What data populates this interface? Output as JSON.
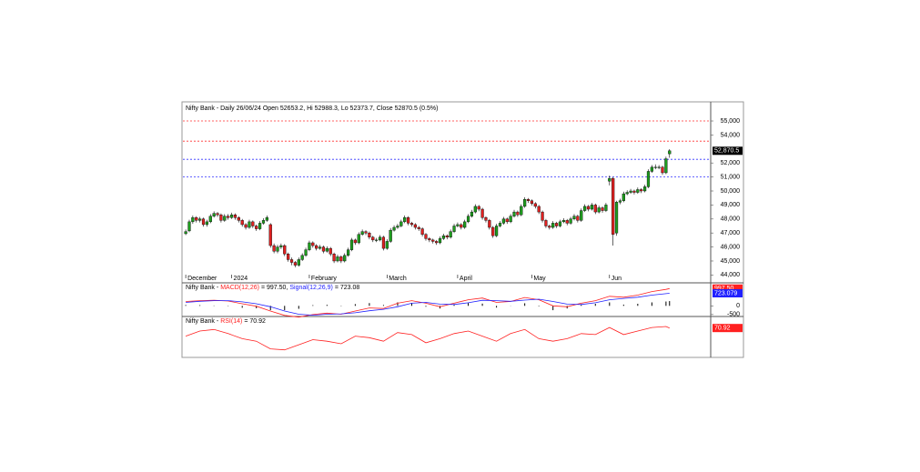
{
  "chart_data": [
    {
      "type": "candlestick",
      "title": "Nifty Bank - Daily 26/06/24 Open 52653.2, Hi 52988.3, Lo 52373.7, Close 52870.5 (0.5%)",
      "up_color": "#1e9e1e",
      "down_color": "#e02020",
      "xlim": [
        -0.8,
        148.4
      ],
      "xticks": [
        {
          "value": 0,
          "label": "December"
        },
        {
          "value": 13,
          "label": "2024"
        },
        {
          "value": 35,
          "label": "February"
        },
        {
          "value": 57,
          "label": "March"
        },
        {
          "value": 77,
          "label": "April"
        },
        {
          "value": 98,
          "label": "May"
        },
        {
          "value": 120,
          "label": "Jun"
        }
      ],
      "ylim": [
        43700,
        56300
      ],
      "yticks": [
        {
          "value": 44000,
          "label": "44,000"
        },
        {
          "value": 45000,
          "label": "45,000"
        },
        {
          "value": 46000,
          "label": "46,000"
        },
        {
          "value": 47000,
          "label": "47,000"
        },
        {
          "value": 48000,
          "label": "48,000"
        },
        {
          "value": 49000,
          "label": "49,000"
        },
        {
          "value": 50000,
          "label": "50,000"
        },
        {
          "value": 51000,
          "label": "51,000"
        },
        {
          "value": 52000,
          "label": "52,000"
        },
        {
          "value": 54000,
          "label": "54,000"
        },
        {
          "value": 55000,
          "label": "55,000"
        }
      ],
      "hlines": [
        {
          "value": 55000,
          "color": "#ff3030"
        },
        {
          "value": 53560,
          "color": "#ff3030"
        },
        {
          "value": 52260,
          "color": "#3030ff"
        },
        {
          "value": 51000,
          "color": "#3030ff"
        }
      ],
      "last_label": "52,870.5",
      "candles": [
        [
          46950,
          47250,
          46850,
          47100
        ],
        [
          47150,
          47950,
          47050,
          47800
        ],
        [
          47800,
          48250,
          47650,
          48100
        ],
        [
          48100,
          48200,
          47750,
          47900
        ],
        [
          47900,
          48150,
          47750,
          48000
        ],
        [
          48000,
          48100,
          47450,
          47600
        ],
        [
          47600,
          47950,
          47450,
          47800
        ],
        [
          47800,
          48350,
          47700,
          48200
        ],
        [
          48200,
          48550,
          48100,
          48400
        ],
        [
          48400,
          48500,
          48150,
          48300
        ],
        [
          48300,
          48400,
          47750,
          47900
        ],
        [
          47900,
          48350,
          47800,
          48200
        ],
        [
          48200,
          48350,
          47950,
          48100
        ],
        [
          48100,
          48450,
          48000,
          48300
        ],
        [
          48300,
          48400,
          47950,
          48100
        ],
        [
          48100,
          48200,
          47750,
          47900
        ],
        [
          47900,
          48000,
          47450,
          47600
        ],
        [
          47600,
          47700,
          47250,
          47400
        ],
        [
          47400,
          47950,
          47300,
          47800
        ],
        [
          47800,
          47900,
          47350,
          47500
        ],
        [
          47500,
          47600,
          47150,
          47300
        ],
        [
          47300,
          47850,
          47200,
          47700
        ],
        [
          47700,
          48050,
          47600,
          47900
        ],
        [
          47900,
          48250,
          47800,
          48100
        ],
        [
          47600,
          47700,
          45950,
          46100
        ],
        [
          46100,
          46250,
          45550,
          45700
        ],
        [
          45700,
          46150,
          45550,
          46000
        ],
        [
          46000,
          46250,
          45850,
          46100
        ],
        [
          46100,
          46200,
          45350,
          45500
        ],
        [
          45500,
          45600,
          44950,
          45100
        ],
        [
          45100,
          45250,
          44700,
          44900
        ],
        [
          44900,
          45000,
          44550,
          44700
        ],
        [
          44700,
          45250,
          44600,
          45100
        ],
        [
          45100,
          45550,
          45000,
          45400
        ],
        [
          45400,
          45950,
          45300,
          45800
        ],
        [
          45800,
          46450,
          45700,
          46300
        ],
        [
          46300,
          46400,
          45950,
          46100
        ],
        [
          46100,
          46200,
          45750,
          45900
        ],
        [
          45900,
          46150,
          45800,
          46000
        ],
        [
          46000,
          46100,
          45550,
          45700
        ],
        [
          45700,
          46050,
          45600,
          45900
        ],
        [
          45900,
          46000,
          45350,
          45500
        ],
        [
          45500,
          45600,
          44850,
          45000
        ],
        [
          45000,
          45450,
          44900,
          45300
        ],
        [
          45300,
          45400,
          44850,
          45000
        ],
        [
          45000,
          45550,
          44900,
          45400
        ],
        [
          45400,
          45950,
          45300,
          45800
        ],
        [
          45800,
          46650,
          45700,
          46500
        ],
        [
          46500,
          46600,
          46150,
          46300
        ],
        [
          46300,
          47050,
          46200,
          46900
        ],
        [
          46900,
          47250,
          46800,
          47100
        ],
        [
          47100,
          47200,
          46850,
          47000
        ],
        [
          47000,
          47100,
          46550,
          46700
        ],
        [
          46700,
          46800,
          46350,
          46500
        ],
        [
          46500,
          46650,
          46350,
          46500
        ],
        [
          46500,
          46850,
          46400,
          46700
        ],
        [
          46700,
          46800,
          45750,
          45900
        ],
        [
          45900,
          46550,
          45800,
          46400
        ],
        [
          46400,
          47350,
          46300,
          47200
        ],
        [
          47200,
          47550,
          47100,
          47400
        ],
        [
          47400,
          47650,
          47300,
          47500
        ],
        [
          47500,
          47950,
          47400,
          47800
        ],
        [
          47800,
          48250,
          47700,
          48100
        ],
        [
          48100,
          48200,
          47550,
          47700
        ],
        [
          47700,
          47800,
          47450,
          47600
        ],
        [
          47600,
          47700,
          47250,
          47400
        ],
        [
          47400,
          47500,
          47150,
          47300
        ],
        [
          47300,
          47400,
          46750,
          46900
        ],
        [
          46900,
          47000,
          46450,
          46600
        ],
        [
          46600,
          46700,
          46350,
          46500
        ],
        [
          46500,
          46600,
          46250,
          46400
        ],
        [
          46400,
          46500,
          46150,
          46300
        ],
        [
          46300,
          46750,
          46200,
          46600
        ],
        [
          46600,
          46950,
          46500,
          46800
        ],
        [
          46800,
          46900,
          46550,
          46700
        ],
        [
          46700,
          47250,
          46600,
          47100
        ],
        [
          47100,
          47650,
          47000,
          47500
        ],
        [
          47500,
          47750,
          47400,
          47600
        ],
        [
          47600,
          47700,
          47250,
          47400
        ],
        [
          47400,
          47950,
          47300,
          47800
        ],
        [
          47800,
          48350,
          47700,
          48200
        ],
        [
          48200,
          48650,
          48100,
          48500
        ],
        [
          48500,
          49050,
          48400,
          48900
        ],
        [
          48900,
          49000,
          48550,
          48700
        ],
        [
          48700,
          48800,
          47950,
          48100
        ],
        [
          48100,
          48200,
          47750,
          47900
        ],
        [
          47900,
          48000,
          47250,
          47400
        ],
        [
          47400,
          47500,
          46650,
          46800
        ],
        [
          46800,
          47650,
          46700,
          47500
        ],
        [
          47500,
          47850,
          47400,
          47700
        ],
        [
          47700,
          48150,
          47600,
          48000
        ],
        [
          48000,
          48100,
          47650,
          47800
        ],
        [
          47800,
          48350,
          47700,
          48200
        ],
        [
          48200,
          48650,
          48100,
          48500
        ],
        [
          48500,
          48600,
          48150,
          48300
        ],
        [
          48300,
          49050,
          48200,
          48900
        ],
        [
          48900,
          49550,
          48800,
          49400
        ],
        [
          49400,
          49500,
          49150,
          49300
        ],
        [
          49300,
          49400,
          48950,
          49100
        ],
        [
          49100,
          49200,
          48750,
          48900
        ],
        [
          48900,
          49000,
          48350,
          48500
        ],
        [
          48500,
          48600,
          47750,
          47900
        ],
        [
          47900,
          48000,
          47350,
          47500
        ],
        [
          47500,
          47600,
          47250,
          47400
        ],
        [
          47400,
          47850,
          47300,
          47700
        ],
        [
          47700,
          47800,
          47350,
          47500
        ],
        [
          47500,
          47950,
          47400,
          47800
        ],
        [
          47800,
          48050,
          47700,
          47900
        ],
        [
          47900,
          48000,
          47550,
          47700
        ],
        [
          47700,
          48150,
          47600,
          48000
        ],
        [
          48000,
          48350,
          47900,
          48200
        ],
        [
          48200,
          48300,
          47750,
          47900
        ],
        [
          47900,
          48750,
          47800,
          48600
        ],
        [
          48600,
          49050,
          48500,
          48900
        ],
        [
          48900,
          49000,
          48550,
          48700
        ],
        [
          48700,
          49150,
          48600,
          49000
        ],
        [
          49000,
          49100,
          48350,
          48500
        ],
        [
          48500,
          48950,
          48400,
          48800
        ],
        [
          48800,
          48900,
          48450,
          48600
        ],
        [
          48600,
          49150,
          48500,
          49000
        ],
        [
          50700,
          51100,
          50400,
          50900
        ],
        [
          50900,
          51000,
          46100,
          46900
        ],
        [
          47000,
          49300,
          46800,
          49200
        ],
        [
          49200,
          49450,
          49050,
          49300
        ],
        [
          49300,
          49950,
          49200,
          49800
        ],
        [
          49800,
          50050,
          49700,
          49900
        ],
        [
          49900,
          50150,
          49800,
          50000
        ],
        [
          50000,
          50100,
          49750,
          49900
        ],
        [
          49900,
          50250,
          49800,
          50100
        ],
        [
          50100,
          50200,
          49850,
          50000
        ],
        [
          50000,
          50450,
          49900,
          50300
        ],
        [
          50300,
          51550,
          50200,
          51400
        ],
        [
          51400,
          51850,
          51300,
          51700
        ],
        [
          51700,
          51900,
          51550,
          51700
        ],
        [
          51700,
          51850,
          51550,
          51700
        ],
        [
          51700,
          51800,
          51150,
          51300
        ],
        [
          51300,
          52450,
          51200,
          52300
        ],
        [
          52653.2,
          52988.3,
          52373.7,
          52870.5
        ]
      ]
    },
    {
      "type": "macd",
      "title": "Nifty Bank -",
      "xlim": [
        -0.8,
        148.4
      ],
      "ylim": [
        -560,
        1220
      ],
      "yticks": [
        0,
        -500
      ],
      "x": [
        0,
        4,
        8,
        12,
        16,
        20,
        24,
        28,
        32,
        36,
        40,
        44,
        48,
        52,
        56,
        60,
        64,
        68,
        72,
        76,
        80,
        84,
        88,
        92,
        96,
        100,
        104,
        108,
        112,
        116,
        120,
        124,
        128,
        132,
        136,
        137
      ],
      "histogram": [
        50,
        40,
        20,
        -20,
        -110,
        -140,
        -250,
        -250,
        -170,
        40,
        60,
        -20,
        100,
        160,
        50,
        200,
        150,
        -50,
        -150,
        70,
        170,
        130,
        -100,
        -10,
        150,
        -30,
        -250,
        -150,
        70,
        120,
        200,
        70,
        120,
        200,
        250,
        274.42
      ],
      "histogram_color": "#000000",
      "series": [
        {
          "name": "MACD(12,26)",
          "value_label": "= 997.50,",
          "last_label": "997.50",
          "color": "#ff2020",
          "values": [
            250,
            300,
            320,
            280,
            120,
            -20,
            -300,
            -550,
            -650,
            -500,
            -420,
            -480,
            -300,
            -120,
            -150,
            150,
            300,
            150,
            -50,
            150,
            350,
            450,
            200,
            250,
            480,
            350,
            0,
            -50,
            150,
            300,
            550,
            500,
            620,
            820,
            950,
            997.5
          ]
        },
        {
          "name": "Signal(12,26,9)",
          "value_label": "= 723.08",
          "last_label": "723.079",
          "color": "#2020ff",
          "values": [
            200,
            260,
            300,
            300,
            230,
            120,
            -50,
            -300,
            -480,
            -540,
            -480,
            -460,
            -400,
            -280,
            -200,
            -50,
            150,
            200,
            100,
            80,
            180,
            320,
            300,
            260,
            330,
            380,
            250,
            100,
            80,
            180,
            350,
            430,
            500,
            620,
            700,
            723.08
          ]
        }
      ]
    },
    {
      "type": "rsi",
      "title": "Nifty Bank -",
      "xlim": [
        -0.8,
        148.4
      ],
      "ylim": [
        15,
        90
      ],
      "x": [
        0,
        4,
        8,
        12,
        16,
        20,
        24,
        28,
        32,
        36,
        40,
        44,
        48,
        52,
        56,
        60,
        64,
        68,
        72,
        76,
        80,
        84,
        88,
        92,
        96,
        100,
        104,
        108,
        112,
        116,
        120,
        124,
        128,
        132,
        136,
        137
      ],
      "series": [
        {
          "name": "RSI(14)",
          "value_label": "= 70.92",
          "last_label": "70.92",
          "color": "#ff2020",
          "values": [
            55,
            65,
            68,
            60,
            50,
            45,
            30,
            28,
            38,
            48,
            45,
            40,
            55,
            52,
            45,
            62,
            58,
            42,
            50,
            60,
            65,
            55,
            45,
            60,
            68,
            50,
            45,
            50,
            60,
            58,
            72,
            58,
            65,
            72,
            74,
            70.92
          ]
        }
      ]
    }
  ]
}
